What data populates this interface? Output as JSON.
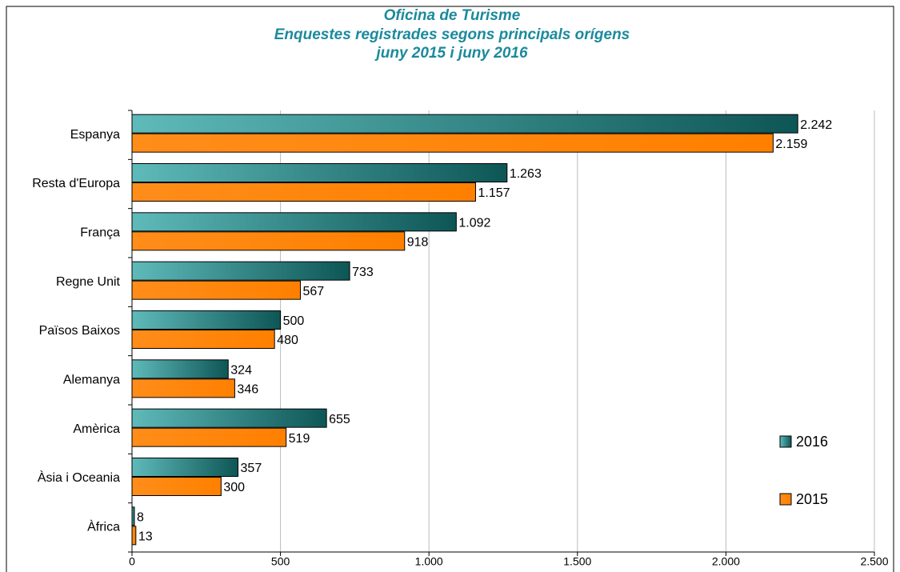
{
  "chart_data": {
    "type": "bar",
    "orientation": "horizontal",
    "title": [
      "Oficina de Turisme",
      "Enquestes registrades segons principals orígens",
      "juny 2015 i juny 2016"
    ],
    "categories": [
      "Espanya",
      "Resta d'Europa",
      "França",
      "Regne Unit",
      "Països Baixos",
      "Alemanya",
      "Amèrica",
      "Àsia i Oceania",
      "Àfrica"
    ],
    "series": [
      {
        "name": "2016",
        "color": "#1a9c9c",
        "values": [
          2242,
          1263,
          1092,
          733,
          500,
          324,
          655,
          357,
          8
        ],
        "value_labels": [
          "2.242",
          "1.263",
          "1.092",
          "733",
          "500",
          "324",
          "655",
          "357",
          "8"
        ]
      },
      {
        "name": "2015",
        "color": "#ff8000",
        "values": [
          2159,
          1157,
          918,
          567,
          480,
          346,
          519,
          300,
          13
        ],
        "value_labels": [
          "2.159",
          "1.157",
          "918",
          "567",
          "480",
          "346",
          "519",
          "300",
          "13"
        ]
      }
    ],
    "xlim": [
      0,
      2500
    ],
    "xticks": [
      0,
      500,
      {
        "value": 1000,
        "label": "1.000"
      },
      {
        "value": 1500,
        "label": "1.500"
      },
      {
        "value": 2000,
        "label": "2.000"
      },
      {
        "value": 2500,
        "label": "2.500"
      }
    ],
    "grid": true,
    "legend": "right"
  }
}
